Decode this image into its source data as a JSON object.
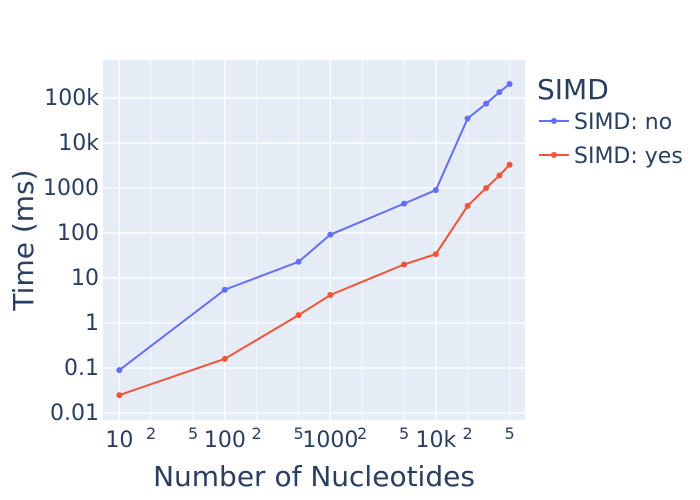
{
  "chart_data": {
    "type": "line",
    "xlabel": "Number of Nucleotides",
    "ylabel": "Time (ms)",
    "xscale": "log",
    "yscale": "log",
    "xlim": [
      7,
      70000
    ],
    "ylim": [
      0.007,
      700000
    ],
    "grid": true,
    "legend_position": "right",
    "legend_title": "SIMD",
    "plot_bgcolor": "#e5ecf6",
    "x_ticks": [
      {
        "value": 10,
        "label": "10",
        "major": true
      },
      {
        "value": 20,
        "label": "2",
        "major": false
      },
      {
        "value": 50,
        "label": "5",
        "major": false
      },
      {
        "value": 100,
        "label": "100",
        "major": true
      },
      {
        "value": 200,
        "label": "2",
        "major": false
      },
      {
        "value": 500,
        "label": "5",
        "major": false
      },
      {
        "value": 1000,
        "label": "1000",
        "major": true
      },
      {
        "value": 2000,
        "label": "2",
        "major": false
      },
      {
        "value": 5000,
        "label": "5",
        "major": false
      },
      {
        "value": 10000,
        "label": "10k",
        "major": true
      },
      {
        "value": 20000,
        "label": "2",
        "major": false
      },
      {
        "value": 50000,
        "label": "5",
        "major": false
      }
    ],
    "y_ticks": [
      {
        "value": 0.01,
        "label": "0.01"
      },
      {
        "value": 0.1,
        "label": "0.1"
      },
      {
        "value": 1,
        "label": "1"
      },
      {
        "value": 10,
        "label": "10"
      },
      {
        "value": 100,
        "label": "100"
      },
      {
        "value": 1000,
        "label": "1000"
      },
      {
        "value": 10000,
        "label": "10k"
      },
      {
        "value": 100000,
        "label": "100k"
      }
    ],
    "series": [
      {
        "name": "SIMD: no",
        "color": "#636efa",
        "x": [
          10,
          100,
          500,
          1000,
          5000,
          10000,
          20000,
          30000,
          40000,
          50000
        ],
        "y": [
          0.09,
          5.5,
          23,
          92,
          450,
          900,
          35000,
          75000,
          135000,
          205000
        ]
      },
      {
        "name": "SIMD: yes",
        "color": "#ef553b",
        "x": [
          10,
          100,
          500,
          1000,
          5000,
          10000,
          20000,
          30000,
          40000,
          50000
        ],
        "y": [
          0.025,
          0.16,
          1.5,
          4.2,
          20,
          34,
          400,
          1000,
          1900,
          3300
        ]
      }
    ]
  }
}
